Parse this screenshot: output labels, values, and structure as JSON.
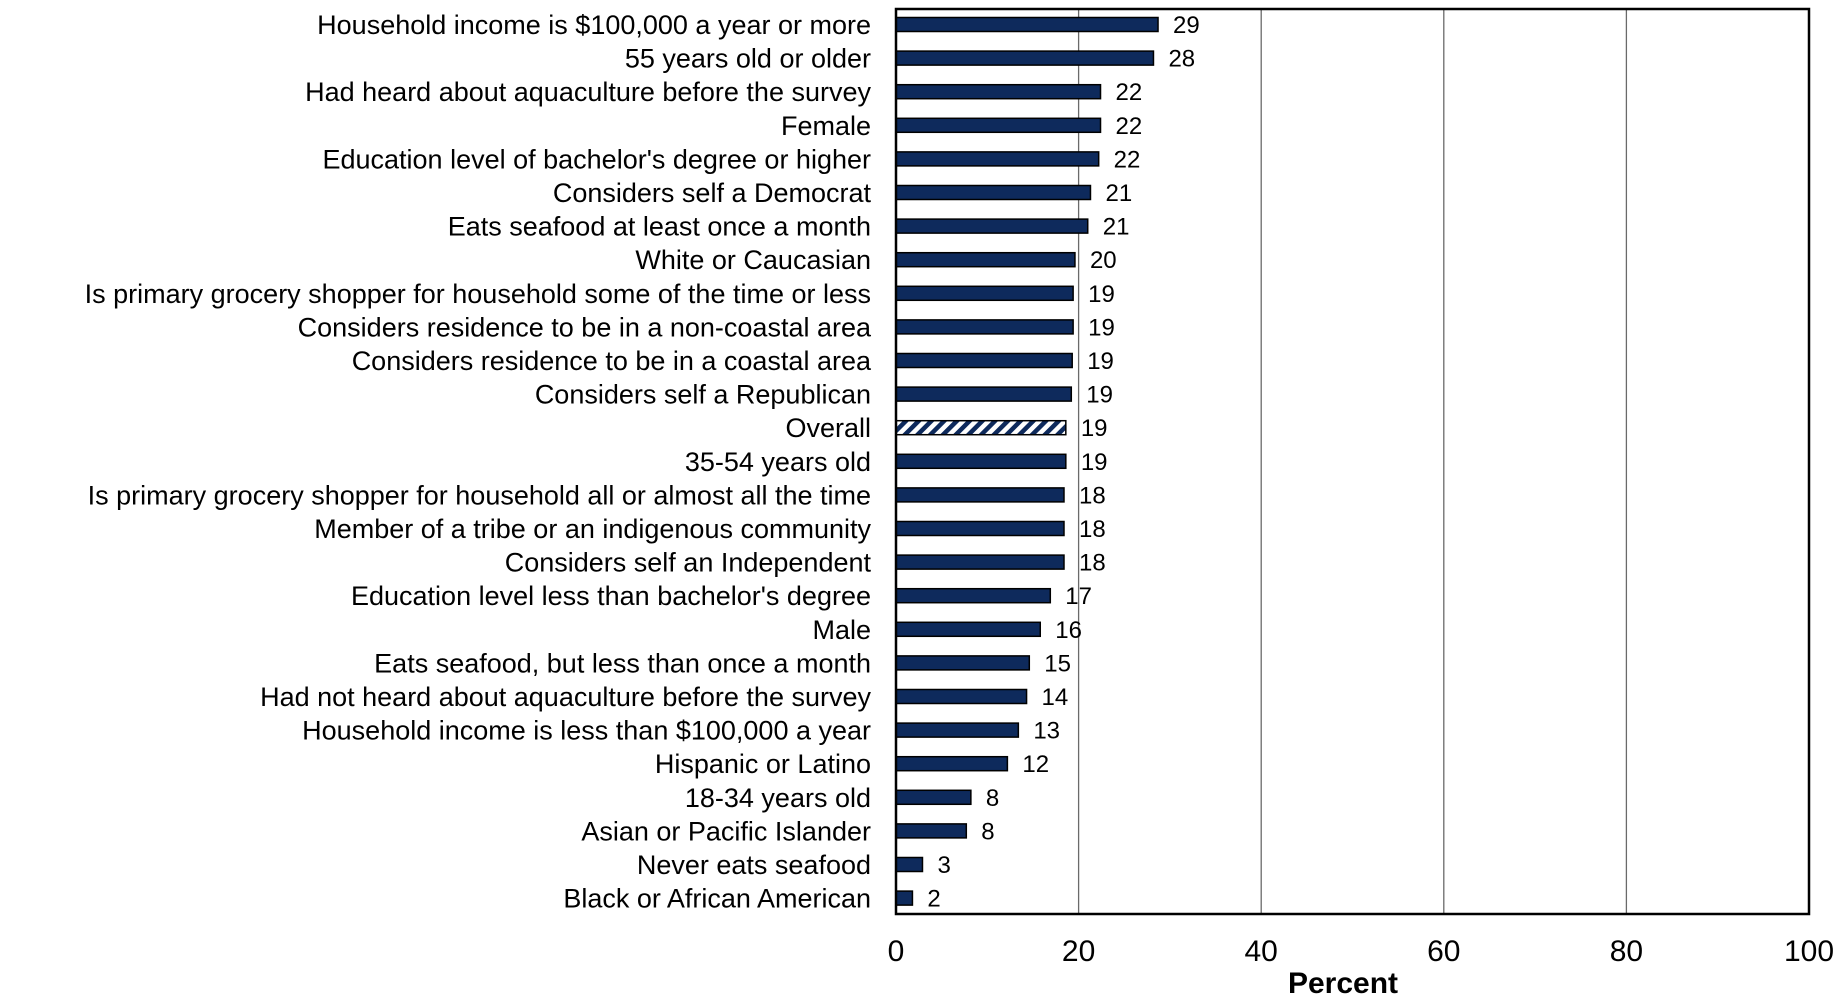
{
  "chart_data": {
    "type": "bar",
    "orientation": "horizontal",
    "xlabel": "Percent",
    "ylabel": "",
    "xlim": [
      0,
      100
    ],
    "x_ticks": [
      "0",
      "20",
      "40",
      "60",
      "80",
      "100"
    ],
    "grid": "vertical lines at 20, 40, 60, 80",
    "legend": "none",
    "colors": {
      "bar_fill": "#0e2a5c",
      "bar_stroke": "#000000",
      "highlight_pattern": "diagonal hatch navy on white"
    },
    "highlight_category": "Overall",
    "categories": [
      "Household income is $100,000 a year or more",
      "55 years old or older",
      "Had heard about aquaculture before the survey",
      "Female",
      "Education level of bachelor's degree or higher",
      "Considers self a Democrat",
      "Eats seafood at least once a month",
      "White or Caucasian",
      "Is primary grocery shopper for household some of the time or less",
      "Considers residence to be in a non-coastal area",
      "Considers residence to be in a coastal area",
      "Considers self a Republican",
      "Overall",
      "35-54 years old",
      "Is primary grocery shopper for household all or almost all the time",
      "Member of a tribe or an indigenous community",
      "Considers self an Independent",
      "Education level less than bachelor's degree",
      "Male",
      "Eats seafood, but less than once a month",
      "Had not heard about aquaculture before the survey",
      "Household income is less than $100,000 a year",
      "Hispanic or Latino",
      "18-34 years old",
      "Asian or Pacific Islander",
      "Never eats seafood",
      "Black or African American"
    ],
    "values": [
      28.7,
      28.2,
      22.4,
      22.4,
      22.2,
      21.3,
      21.0,
      19.6,
      19.4,
      19.4,
      19.3,
      19.2,
      18.6,
      18.6,
      18.4,
      18.4,
      18.4,
      16.9,
      15.8,
      14.6,
      14.3,
      13.4,
      12.2,
      8.2,
      7.7,
      2.9,
      1.8
    ],
    "value_labels": [
      "29",
      "28",
      "22",
      "22",
      "22",
      "21",
      "21",
      "20",
      "19",
      "19",
      "19",
      "19",
      "19",
      "19",
      "18",
      "18",
      "18",
      "17",
      "16",
      "15",
      "14",
      "13",
      "12",
      "8",
      "8",
      "3",
      "2"
    ]
  }
}
